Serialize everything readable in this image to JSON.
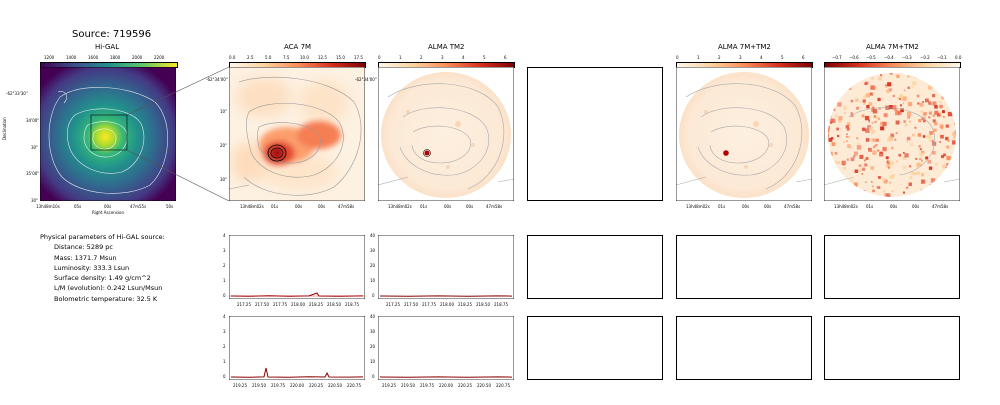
{
  "source_title": "Source: 719596",
  "column_titles": [
    "Hi-GAL",
    "ACA 7M",
    "ALMA TM2",
    "ALMA 7M+TM2",
    "ALMA 7M+TM2"
  ],
  "colorbars": {
    "higal": [
      "1200",
      "1400",
      "1600",
      "1800",
      "2000",
      "2200"
    ],
    "aca": [
      "0.0",
      "2.5",
      "5.0",
      "7.5",
      "10.0",
      "12.5",
      "15.0",
      "17.5"
    ],
    "tm2": [
      "0",
      "1",
      "2",
      "3",
      "4",
      "5",
      "6"
    ],
    "comb": [
      "0",
      "1",
      "2",
      "3",
      "4",
      "5",
      "6"
    ],
    "resid": [
      "−0.7",
      "−0.6",
      "−0.5",
      "−0.4",
      "−0.3",
      "−0.2",
      "−0.1",
      "0.0"
    ]
  },
  "higal_axes": {
    "ylabel": "Declination",
    "xlabel": "Right Ascension",
    "yticks": [
      "-62°33'30\"",
      "34'00\"",
      "30\"",
      "35'00\"",
      "30\""
    ],
    "xticks": [
      "13h48m10s",
      "05s",
      "00s",
      "47m55s",
      "50s"
    ]
  },
  "map_axes": {
    "yticks": [
      "-62°34'00\"",
      "10\"",
      "20\"",
      "30\""
    ],
    "xticks": [
      "13h48m02s",
      "01s",
      "00s",
      "00s",
      "47m58s"
    ]
  },
  "parameters": {
    "heading": "Physical parameters of Hi-GAL source:",
    "distance": "Distance: 5289 pc",
    "mass": "Mass: 1371.7 Msun",
    "luminosity": "Luminosity: 333.3 Lsun",
    "surface_density": "Surface density: 1.49 g/cm^2",
    "lm": "L/M (evolution): 0.242 Lsun/Msun",
    "temperature": "Bolometric temperature: 32.5 K"
  },
  "spectra": {
    "row1_xticks": [
      "217.25",
      "217.50",
      "217.75",
      "218.00",
      "218.25",
      "218.50",
      "218.75"
    ],
    "row2_xticks": [
      "219.25",
      "219.50",
      "219.75",
      "220.00",
      "220.25",
      "220.50",
      "220.75"
    ],
    "aca_yticks": [
      "0",
      "1",
      "2",
      "3",
      "4"
    ],
    "tm2_yticks": [
      "0",
      "10",
      "20",
      "30",
      "40"
    ]
  },
  "colors": {
    "line": "#8b0000",
    "contour": "#999999",
    "viridis_low": "#440154",
    "viridis_high": "#fde725"
  }
}
